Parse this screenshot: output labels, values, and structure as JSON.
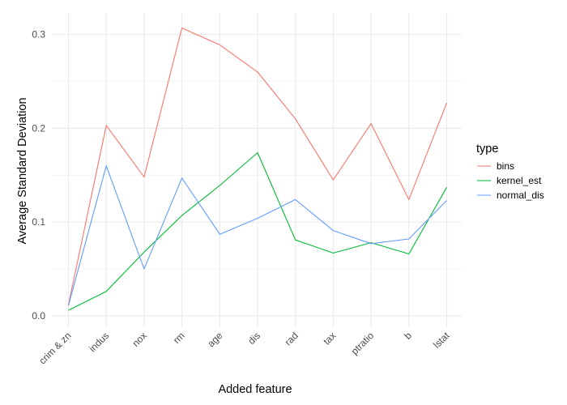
{
  "chart_data": {
    "type": "line",
    "xlabel": "Added feature",
    "ylabel": "Average Standard Deviation",
    "categories": [
      "crim & zn",
      "indus",
      "nox",
      "rm",
      "age",
      "dis",
      "rad",
      "tax",
      "ptratio",
      "b",
      "lstat"
    ],
    "ylim": [
      0,
      0.31
    ],
    "yticks": [
      0.0,
      0.1,
      0.2,
      0.3
    ],
    "ytick_labels": [
      "0.0",
      "0.1",
      "0.2",
      "0.3"
    ],
    "grid": true,
    "legend": {
      "title": "type",
      "position": "right"
    },
    "series": [
      {
        "name": "bins",
        "color": "#F8766D",
        "values": [
          0.012,
          0.203,
          0.148,
          0.307,
          0.289,
          0.26,
          0.21,
          0.145,
          0.205,
          0.124,
          0.227
        ]
      },
      {
        "name": "kernel_est",
        "color": "#00BA38",
        "values": [
          0.006,
          0.026,
          0.068,
          0.107,
          0.139,
          0.174,
          0.081,
          0.067,
          0.078,
          0.066,
          0.137
        ]
      },
      {
        "name": "normal_dis",
        "color": "#619CFF",
        "values": [
          0.011,
          0.16,
          0.05,
          0.147,
          0.087,
          0.104,
          0.124,
          0.091,
          0.077,
          0.082,
          0.123
        ]
      }
    ]
  }
}
